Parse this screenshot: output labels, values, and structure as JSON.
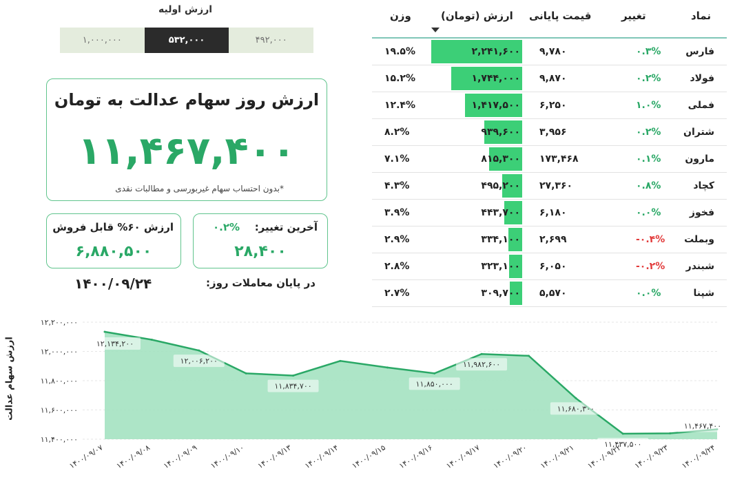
{
  "initial_value": {
    "title": "ارزش اولیه",
    "options": [
      "۱,۰۰۰,۰۰۰",
      "۵۳۲,۰۰۰",
      "۴۹۲,۰۰۰"
    ],
    "selected": "۵۳۲,۰۰۰"
  },
  "main_card": {
    "title": "ارزش روز سهام عدالت به تومان",
    "value": "۱۱,۴۶۷,۴۰۰",
    "note": "*بدون احتساب سهام غیربورسی و مطالبات نقدی"
  },
  "sellable_card": {
    "title": "ارزش ۶۰% قابل فروش",
    "value": "۶,۸۸۰,۵۰۰"
  },
  "change_card": {
    "title": "آخرین تغییر:",
    "percent": "۰.۲%",
    "value": "۲۸,۴۰۰"
  },
  "date": {
    "label": "در پایان معاملات روز:",
    "value": "۱۴۰۰/۰۹/۲۴"
  },
  "table": {
    "headers": {
      "symbol": "نماد",
      "change": "تغییر",
      "price": "قیمت پایانی",
      "value": "ارزش (تومان)",
      "weight": "وزن"
    },
    "rows": [
      {
        "symbol": "فارس",
        "change": "۰.۳%",
        "change_sign": "pos",
        "price": "۹,۷۸۰",
        "value": "۲,۲۴۱,۶۰۰",
        "value_num": 2241600,
        "weight": "۱۹.۵%"
      },
      {
        "symbol": "فولاد",
        "change": "۰.۲%",
        "change_sign": "pos",
        "price": "۹,۸۷۰",
        "value": "۱,۷۴۴,۰۰۰",
        "value_num": 1744000,
        "weight": "۱۵.۲%"
      },
      {
        "symbol": "فملی",
        "change": "۱.۰%",
        "change_sign": "pos",
        "price": "۶,۲۵۰",
        "value": "۱,۴۱۷,۵۰۰",
        "value_num": 1417500,
        "weight": "۱۲.۴%"
      },
      {
        "symbol": "شتران",
        "change": "۰.۲%",
        "change_sign": "pos",
        "price": "۳,۹۵۶",
        "value": "۹۳۹,۶۰۰",
        "value_num": 939600,
        "weight": "۸.۲%"
      },
      {
        "symbol": "مارون",
        "change": "۰.۱%",
        "change_sign": "pos",
        "price": "۱۷۳,۴۶۸",
        "value": "۸۱۵,۳۰۰",
        "value_num": 815300,
        "weight": "۷.۱%"
      },
      {
        "symbol": "کچاد",
        "change": "۰.۸%",
        "change_sign": "pos",
        "price": "۲۷,۳۶۰",
        "value": "۴۹۵,۲۰۰",
        "value_num": 495200,
        "weight": "۴.۳%"
      },
      {
        "symbol": "فخوز",
        "change": "۰.۰%",
        "change_sign": "pos",
        "price": "۶,۱۸۰",
        "value": "۴۴۳,۷۰۰",
        "value_num": 443700,
        "weight": "۳.۹%"
      },
      {
        "symbol": "وبملت",
        "change": "-۰.۴%",
        "change_sign": "neg",
        "price": "۲,۶۹۹",
        "value": "۳۳۴,۱۰۰",
        "value_num": 334100,
        "weight": "۲.۹%"
      },
      {
        "symbol": "شبندر",
        "change": "-۰.۲%",
        "change_sign": "neg",
        "price": "۶,۰۵۰",
        "value": "۳۲۳,۱۰۰",
        "value_num": 323100,
        "weight": "۲.۸%"
      },
      {
        "symbol": "شپنا",
        "change": "۰.۰%",
        "change_sign": "pos",
        "price": "۵,۵۷۰",
        "value": "۳۰۹,۷۰۰",
        "value_num": 309700,
        "weight": "۲.۷%"
      }
    ]
  },
  "chart_data": {
    "type": "area",
    "ylabel": "ارزش سهام عدالت",
    "ylim": [
      11400000,
      12200000
    ],
    "y_ticks": [
      11400000,
      11600000,
      11800000,
      12000000,
      12200000
    ],
    "y_tick_labels": [
      "۱۱,۴۰۰,۰۰۰",
      "۱۱,۶۰۰,۰۰۰",
      "۱۱,۸۰۰,۰۰۰",
      "۱۲,۰۰۰,۰۰۰",
      "۱۲,۲۰۰,۰۰۰"
    ],
    "x": [
      "۱۴۰۰/۰۹/۰۷",
      "۱۴۰۰/۰۹/۰۸",
      "۱۴۰۰/۰۹/۰۹",
      "۱۴۰۰/۰۹/۱۰",
      "۱۴۰۰/۰۹/۱۳",
      "۱۴۰۰/۰۹/۱۴",
      "۱۴۰۰/۰۹/۱۵",
      "۱۴۰۰/۰۹/۱۶",
      "۱۴۰۰/۰۹/۱۷",
      "۱۴۰۰/۰۹/۲۰",
      "۱۴۰۰/۰۹/۲۱",
      "۱۴۰۰/۰۹/۲۲",
      "۱۴۰۰/۰۹/۲۳",
      "۱۴۰۰/۰۹/۲۴"
    ],
    "values": [
      12134200,
      12080000,
      12006200,
      11850000,
      11834700,
      11935000,
      11890000,
      11850000,
      11982600,
      11970000,
      11680300,
      11437500,
      11440000,
      11467400
    ],
    "point_labels": [
      {
        "index": 0,
        "text": "۱۲,۱۳۴,۲۰۰"
      },
      {
        "index": 2,
        "text": "۱۲,۰۰۶,۲۰۰"
      },
      {
        "index": 4,
        "text": "۱۱,۸۳۴,۷۰۰"
      },
      {
        "index": 7,
        "text": "۱۱,۸۵۰,۰۰۰"
      },
      {
        "index": 8,
        "text": "۱۱,۹۸۲,۶۰۰"
      },
      {
        "index": 10,
        "text": "۱۱,۶۸۰,۳۰۰"
      },
      {
        "index": 11,
        "text": "۱۱,۴۳۷,۵۰۰"
      },
      {
        "index": 13,
        "text": "۱۱,۴۶۷,۴۰۰"
      }
    ],
    "colors": {
      "line": "#2aa866",
      "fill": "#9fe0bd"
    }
  }
}
